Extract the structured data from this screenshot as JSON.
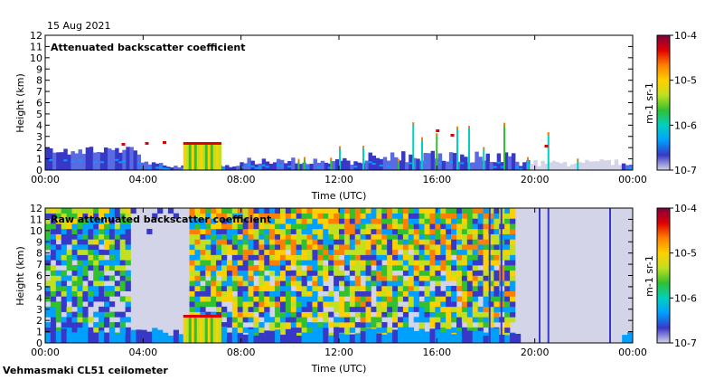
{
  "figure": {
    "date": "15 Aug 2021",
    "footer": "Vehmasmaki CL51 ceilometer"
  },
  "colors": {
    "frame": "#000000",
    "colormap": [
      "#d4d4e8",
      "#3838c8",
      "#00a0ff",
      "#00d0c0",
      "#30c030",
      "#c0e020",
      "#ffd000",
      "#ff8000",
      "#e00000",
      "#800040"
    ]
  },
  "chart_data": [
    {
      "type": "heatmap",
      "title": "Attenuated backscatter coefficient",
      "xlabel": "Time (UTC)",
      "ylabel": "Height (km)",
      "xlim": [
        0,
        24
      ],
      "ylim": [
        0,
        12
      ],
      "x_ticks": [
        "00:00",
        "04:00",
        "08:00",
        "12:00",
        "16:00",
        "20:00",
        "00:00"
      ],
      "y_ticks": [
        0,
        1,
        2,
        3,
        4,
        5,
        6,
        7,
        8,
        9,
        10,
        11,
        12
      ],
      "colorbar": {
        "scale": "log",
        "range": [
          1e-07,
          0.0001
        ],
        "tick_labels": [
          "10-7",
          "10-6",
          "10-5",
          "10-4"
        ],
        "label": "m-1 sr-1"
      }
    },
    {
      "type": "heatmap",
      "title": "Raw attenuated backscatter coefficient",
      "xlabel": "Time (UTC)",
      "ylabel": "Height (km)",
      "xlim": [
        0,
        24
      ],
      "ylim": [
        0,
        12
      ],
      "x_ticks": [
        "00:00",
        "04:00",
        "08:00",
        "12:00",
        "16:00",
        "20:00",
        "00:00"
      ],
      "y_ticks": [
        0,
        1,
        2,
        3,
        4,
        5,
        6,
        7,
        8,
        9,
        10,
        11,
        12
      ],
      "colorbar": {
        "scale": "log",
        "range": [
          1e-07,
          0.0001
        ],
        "tick_labels": [
          "10-7",
          "10-6",
          "10-5",
          "10-4"
        ],
        "label": "m-1 sr-1"
      }
    }
  ]
}
